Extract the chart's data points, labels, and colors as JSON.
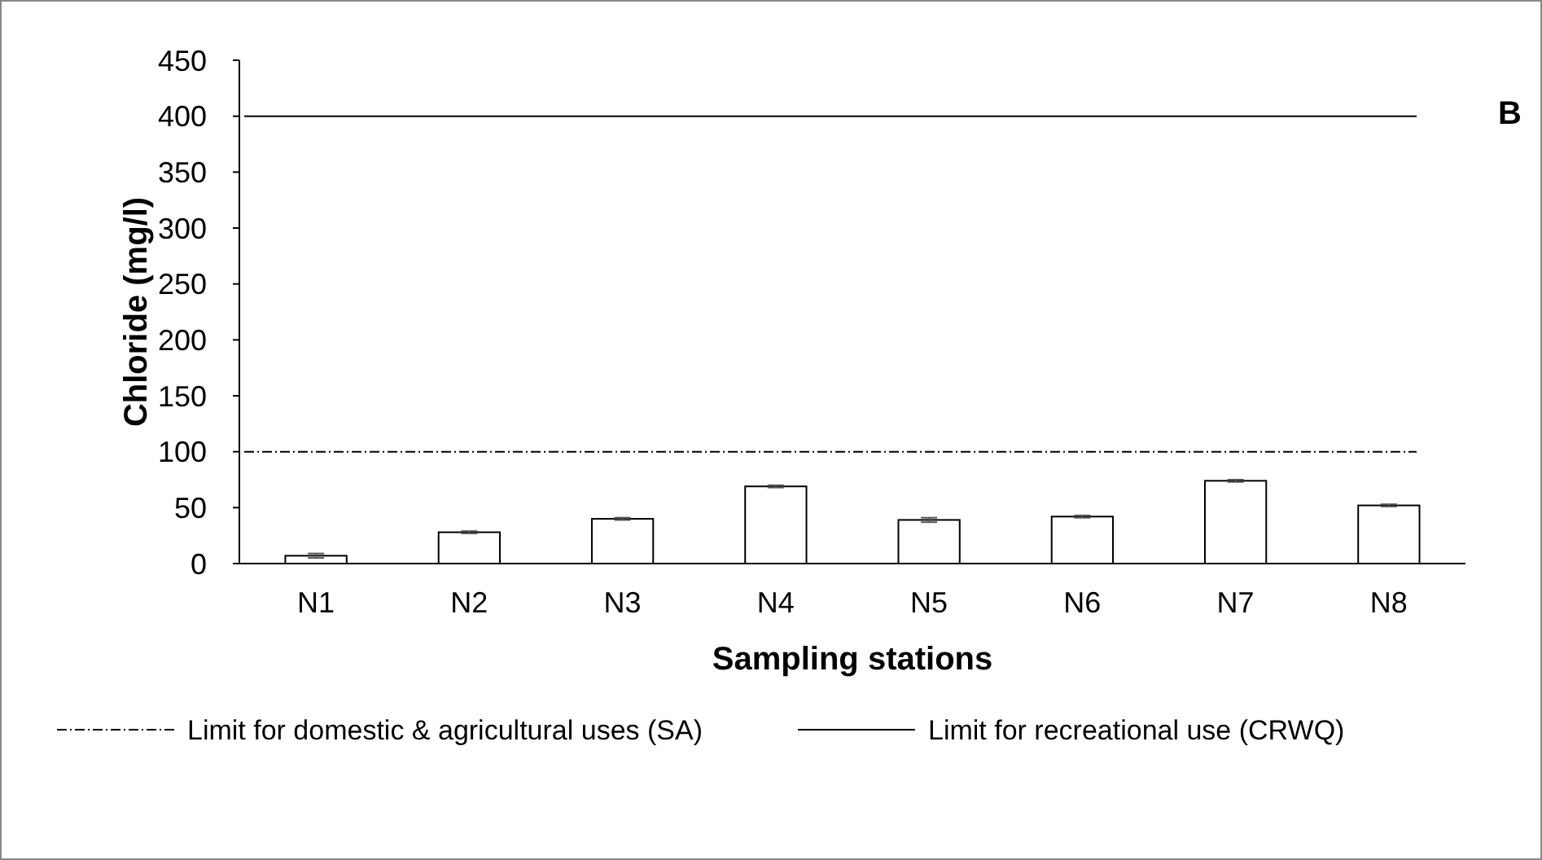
{
  "chart_data": {
    "type": "bar",
    "xlabel": "Sampling stations",
    "ylabel": "Chloride (mg/l)",
    "categories": [
      "N1",
      "N2",
      "N3",
      "N4",
      "N5",
      "N6",
      "N7",
      "N8"
    ],
    "values": [
      7,
      28,
      40,
      69,
      39,
      42,
      74,
      52
    ],
    "errors": [
      2,
      1,
      1,
      1,
      2,
      1,
      1,
      1
    ],
    "color": "#ffffff",
    "ylim": [
      0,
      450
    ],
    "yticks": [
      0,
      50,
      100,
      150,
      200,
      250,
      300,
      350,
      400,
      450
    ],
    "grid": false,
    "legend": "bottom",
    "ref_lines": [
      {
        "axis": "y",
        "value": 100,
        "label": "Limit for domestic & agricultural uses (SA)",
        "color": "#000000",
        "line_style": "dashdot"
      },
      {
        "axis": "y",
        "value": 400,
        "label": "Limit for recreational use (CRWQ)",
        "color": "#000000",
        "line_style": "solid"
      }
    ],
    "annotations": [
      "B"
    ]
  }
}
